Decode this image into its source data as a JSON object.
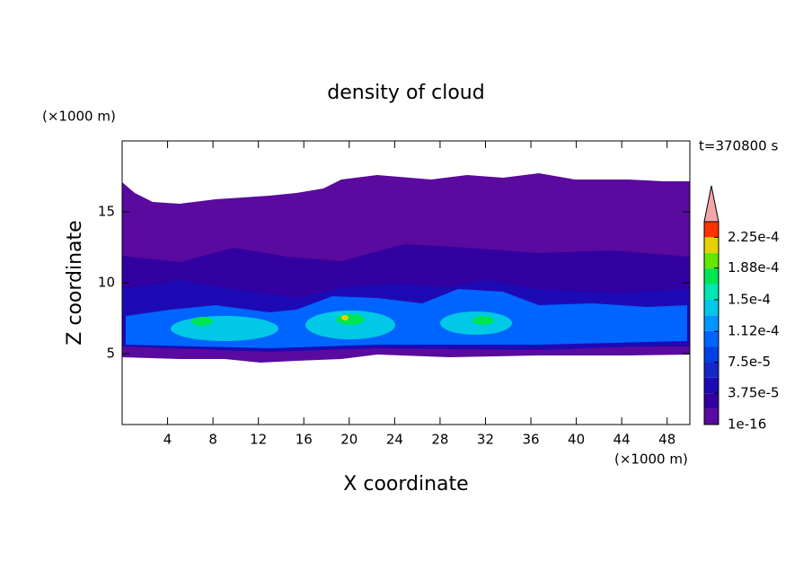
{
  "chart_data": {
    "type": "contour",
    "title": "density of cloud",
    "time_label": "t=370800 s",
    "xlabel": "X coordinate",
    "ylabel": "Z coordinate",
    "x_unit": "(×1000 m)",
    "y_unit": "(×1000 m)",
    "xlim": [
      0,
      50
    ],
    "ylim": [
      0,
      20
    ],
    "xticks": [
      4,
      8,
      12,
      16,
      20,
      24,
      28,
      32,
      36,
      40,
      44,
      48
    ],
    "yticks": [
      5,
      10,
      15
    ],
    "colorbar": {
      "levels": [
        1e-16,
        1.875e-05,
        3.75e-05,
        5.625e-05,
        7.5e-05,
        9.375e-05,
        0.0001125,
        0.00013125,
        0.00015,
        0.00016875,
        0.0001875,
        0.00020625,
        0.000225,
        0.00024375
      ],
      "colors": [
        "#5a0a9e",
        "#3200a0",
        "#1e0ab4",
        "#1428c8",
        "#0040e6",
        "#0064ff",
        "#0096ff",
        "#00c8e6",
        "#00e6b4",
        "#00e650",
        "#64e600",
        "#e6d200",
        "#ff3200"
      ],
      "extend_color": "#f4a6a6",
      "ticks": [
        1e-16,
        {
          "value": 3.75e-05,
          "label": "3.75e-5"
        },
        {
          "value": 7.5e-05,
          "label": "7.5e-5"
        },
        {
          "value": 0.000112,
          "label": "1.12e-4"
        },
        {
          "value": 0.00015,
          "label": "1.5e-4"
        },
        {
          "value": 0.000188,
          "label": "1.88e-4"
        },
        {
          "value": 0.000225,
          "label": "2.25e-4"
        }
      ]
    }
  }
}
